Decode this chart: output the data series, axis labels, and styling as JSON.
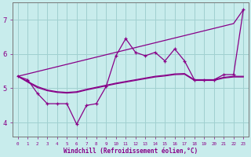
{
  "xlabel": "Windchill (Refroidissement éolien,°C)",
  "background_color": "#c8ecec",
  "grid_color": "#a0d0d0",
  "line_color": "#880088",
  "x_values": [
    0,
    1,
    2,
    3,
    4,
    5,
    6,
    7,
    8,
    9,
    10,
    11,
    12,
    13,
    14,
    15,
    16,
    17,
    18,
    19,
    20,
    21,
    22,
    23
  ],
  "line_jagged_y": [
    5.35,
    5.25,
    4.85,
    4.55,
    4.55,
    4.55,
    3.95,
    4.5,
    4.55,
    5.05,
    5.95,
    6.45,
    6.05,
    5.95,
    6.05,
    5.8,
    6.15,
    5.8,
    5.25,
    5.25,
    5.25,
    5.4,
    5.4,
    7.3
  ],
  "line_straight_y": [
    5.35,
    5.42,
    5.49,
    5.56,
    5.63,
    5.7,
    5.77,
    5.84,
    5.91,
    5.98,
    6.05,
    6.12,
    6.19,
    6.26,
    6.33,
    6.4,
    6.47,
    6.54,
    6.61,
    6.68,
    6.75,
    6.82,
    6.89,
    7.3
  ],
  "line_flat1_y": [
    5.35,
    5.2,
    5.05,
    4.95,
    4.9,
    4.88,
    4.9,
    4.97,
    5.03,
    5.09,
    5.15,
    5.2,
    5.25,
    5.3,
    5.35,
    5.38,
    5.42,
    5.43,
    5.25,
    5.25,
    5.25,
    5.32,
    5.35,
    5.35
  ],
  "line_flat2_y": [
    5.35,
    5.18,
    5.02,
    4.93,
    4.88,
    4.86,
    4.88,
    4.95,
    5.01,
    5.07,
    5.13,
    5.18,
    5.23,
    5.28,
    5.33,
    5.36,
    5.4,
    5.41,
    5.23,
    5.23,
    5.23,
    5.3,
    5.33,
    5.33
  ],
  "ylim": [
    3.6,
    7.5
  ],
  "yticks": [
    4,
    5,
    6,
    7
  ],
  "xticks": [
    0,
    1,
    2,
    3,
    4,
    5,
    6,
    7,
    8,
    9,
    10,
    11,
    12,
    13,
    14,
    15,
    16,
    17,
    18,
    19,
    20,
    21,
    22,
    23
  ]
}
